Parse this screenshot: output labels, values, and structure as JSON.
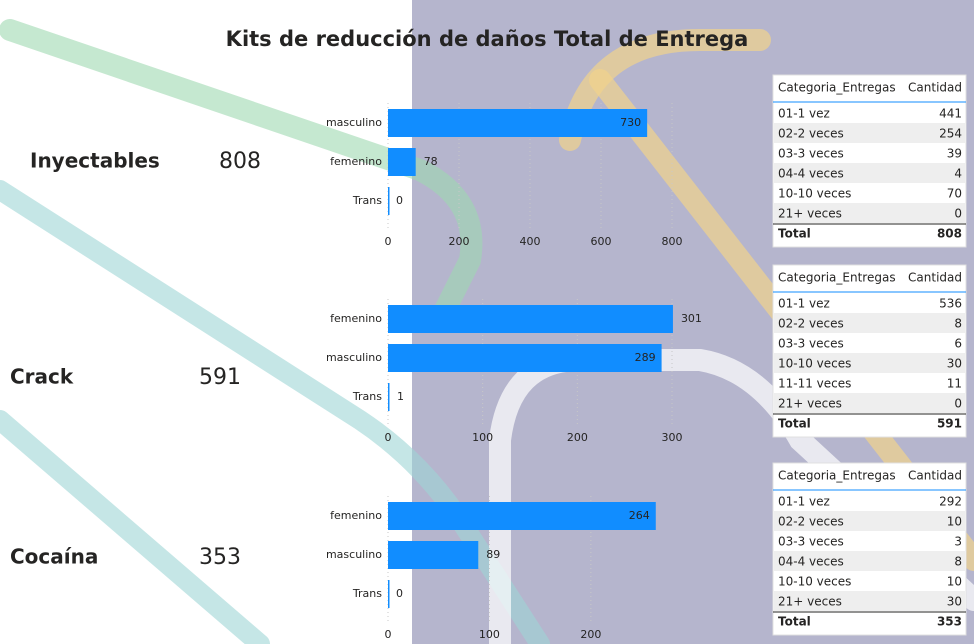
{
  "title": "Kits de reducción de daños Total de Entrega",
  "kpis": [
    {
      "label": "Inyectables",
      "value": 808
    },
    {
      "label": "Crack",
      "value": 591
    },
    {
      "label": "Cocaína",
      "value": 353
    }
  ],
  "chart_data": [
    {
      "type": "bar",
      "categories": [
        "masculino",
        "femenino",
        "Trans"
      ],
      "values": [
        730,
        78,
        0
      ],
      "color": "#118DFF",
      "xlim": [
        0,
        800
      ],
      "xticks": [
        0,
        200,
        400,
        600,
        800
      ]
    },
    {
      "type": "bar",
      "categories": [
        "femenino",
        "masculino",
        "Trans"
      ],
      "values": [
        301,
        289,
        1
      ],
      "color": "#118DFF",
      "xlim": [
        0,
        300
      ],
      "xticks": [
        0,
        100,
        200,
        300
      ]
    },
    {
      "type": "bar",
      "categories": [
        "femenino",
        "masculino",
        "Trans"
      ],
      "values": [
        264,
        89,
        0
      ],
      "color": "#118DFF",
      "xlim": [
        0,
        280
      ],
      "xticks": [
        0,
        100,
        200
      ]
    }
  ],
  "tables": [
    {
      "columns": [
        "Categoria_Entregas",
        "Cantidad"
      ],
      "rows": [
        [
          "01-1 vez",
          441
        ],
        [
          "02-2 veces",
          254
        ],
        [
          "03-3 veces",
          39
        ],
        [
          "04-4 veces",
          4
        ],
        [
          "10-10 veces",
          70
        ],
        [
          "21+ veces",
          0
        ]
      ],
      "total": [
        "Total",
        808
      ]
    },
    {
      "columns": [
        "Categoria_Entregas",
        "Cantidad"
      ],
      "rows": [
        [
          "01-1 vez",
          536
        ],
        [
          "02-2 veces",
          8
        ],
        [
          "03-3 veces",
          6
        ],
        [
          "10-10 veces",
          30
        ],
        [
          "11-11 veces",
          11
        ],
        [
          "21+ veces",
          0
        ]
      ],
      "total": [
        "Total",
        591
      ]
    },
    {
      "columns": [
        "Categoria_Entregas",
        "Cantidad"
      ],
      "rows": [
        [
          "01-1 vez",
          292
        ],
        [
          "02-2 veces",
          10
        ],
        [
          "03-3 veces",
          3
        ],
        [
          "04-4 veces",
          8
        ],
        [
          "10-10 veces",
          10
        ],
        [
          "21+ veces",
          30
        ]
      ],
      "total": [
        "Total",
        353
      ]
    }
  ]
}
